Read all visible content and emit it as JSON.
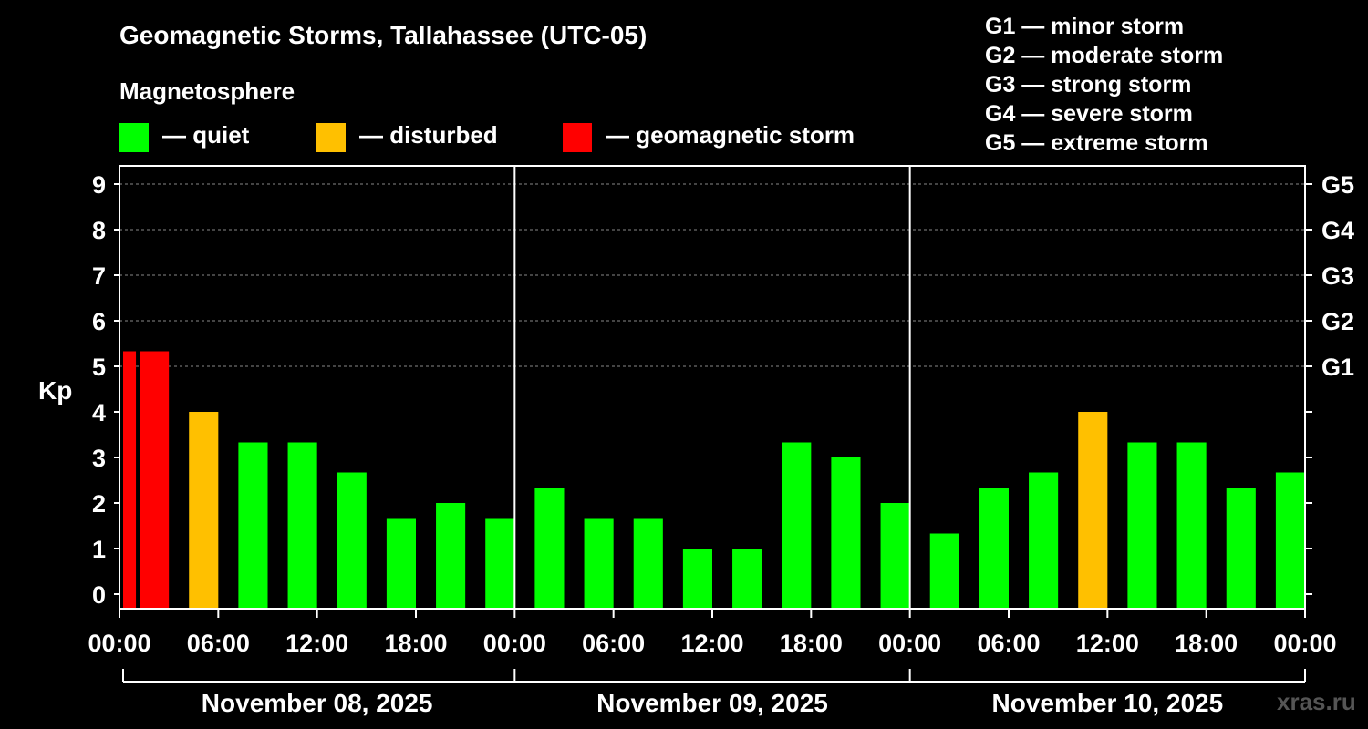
{
  "chart_data": {
    "type": "bar",
    "title": "Geomagnetic Storms, Tallahassee (UTC-05)",
    "subtitle": "Magnetosphere",
    "ylabel": "Kp",
    "ylim": [
      0,
      9
    ],
    "y_ticks": [
      "0",
      "1",
      "2",
      "3",
      "4",
      "5",
      "6",
      "7",
      "8",
      "9"
    ],
    "right_ticks": [
      {
        "kp": 5,
        "label": "G1"
      },
      {
        "kp": 6,
        "label": "G2"
      },
      {
        "kp": 7,
        "label": "G3"
      },
      {
        "kp": 8,
        "label": "G4"
      },
      {
        "kp": 9,
        "label": "G5"
      }
    ],
    "x_ticks": [
      "00:00",
      "06:00",
      "12:00",
      "18:00",
      "00:00",
      "06:00",
      "12:00",
      "18:00",
      "00:00",
      "06:00",
      "12:00",
      "18:00",
      "00:00"
    ],
    "days": [
      "November 08, 2025",
      "November 09, 2025",
      "November 10, 2025"
    ],
    "legend": [
      {
        "label": "— quiet",
        "color": "#00ff00"
      },
      {
        "label": "— disturbed",
        "color": "#ffc000"
      },
      {
        "label": "— geomagnetic storm",
        "color": "#ff0000"
      }
    ],
    "storm_scale": [
      "G1 — minor storm",
      "G2 — moderate storm",
      "G3 — strong storm",
      "G4 — severe storm",
      "G5 — extreme storm"
    ],
    "colors": {
      "quiet": "#00ff00",
      "disturbed": "#ffc000",
      "storm": "#ff0000",
      "grid": "#888888",
      "axis": "#ffffff"
    },
    "x_range_hours": [
      0,
      72
    ],
    "series": [
      {
        "name": "Kp",
        "bars": [
          {
            "start_h": 0,
            "end_h": 1,
            "kp": 5.33,
            "status": "storm"
          },
          {
            "start_h": 1,
            "end_h": 3,
            "kp": 5.33,
            "status": "storm"
          },
          {
            "start_h": 4,
            "end_h": 6,
            "kp": 4.0,
            "status": "disturbed"
          },
          {
            "start_h": 7,
            "end_h": 9,
            "kp": 3.33,
            "status": "quiet"
          },
          {
            "start_h": 10,
            "end_h": 12,
            "kp": 3.33,
            "status": "quiet"
          },
          {
            "start_h": 13,
            "end_h": 15,
            "kp": 2.67,
            "status": "quiet"
          },
          {
            "start_h": 16,
            "end_h": 18,
            "kp": 1.67,
            "status": "quiet"
          },
          {
            "start_h": 19,
            "end_h": 21,
            "kp": 2.0,
            "status": "quiet"
          },
          {
            "start_h": 22,
            "end_h": 24,
            "kp": 1.67,
            "status": "quiet"
          },
          {
            "start_h": 25,
            "end_h": 27,
            "kp": 2.33,
            "status": "quiet"
          },
          {
            "start_h": 28,
            "end_h": 30,
            "kp": 1.67,
            "status": "quiet"
          },
          {
            "start_h": 31,
            "end_h": 33,
            "kp": 1.67,
            "status": "quiet"
          },
          {
            "start_h": 34,
            "end_h": 36,
            "kp": 1.0,
            "status": "quiet"
          },
          {
            "start_h": 37,
            "end_h": 39,
            "kp": 1.0,
            "status": "quiet"
          },
          {
            "start_h": 40,
            "end_h": 42,
            "kp": 3.33,
            "status": "quiet"
          },
          {
            "start_h": 43,
            "end_h": 45,
            "kp": 3.0,
            "status": "quiet"
          },
          {
            "start_h": 46,
            "end_h": 48,
            "kp": 2.0,
            "status": "quiet"
          },
          {
            "start_h": 49,
            "end_h": 51,
            "kp": 1.33,
            "status": "quiet"
          },
          {
            "start_h": 52,
            "end_h": 54,
            "kp": 2.33,
            "status": "quiet"
          },
          {
            "start_h": 55,
            "end_h": 57,
            "kp": 2.67,
            "status": "quiet"
          },
          {
            "start_h": 58,
            "end_h": 60,
            "kp": 4.0,
            "status": "disturbed"
          },
          {
            "start_h": 61,
            "end_h": 63,
            "kp": 3.33,
            "status": "quiet"
          },
          {
            "start_h": 64,
            "end_h": 66,
            "kp": 3.33,
            "status": "quiet"
          },
          {
            "start_h": 67,
            "end_h": 69,
            "kp": 2.33,
            "status": "quiet"
          },
          {
            "start_h": 70,
            "end_h": 72,
            "kp": 2.67,
            "status": "quiet"
          }
        ]
      }
    ]
  },
  "watermark": "xras.ru"
}
